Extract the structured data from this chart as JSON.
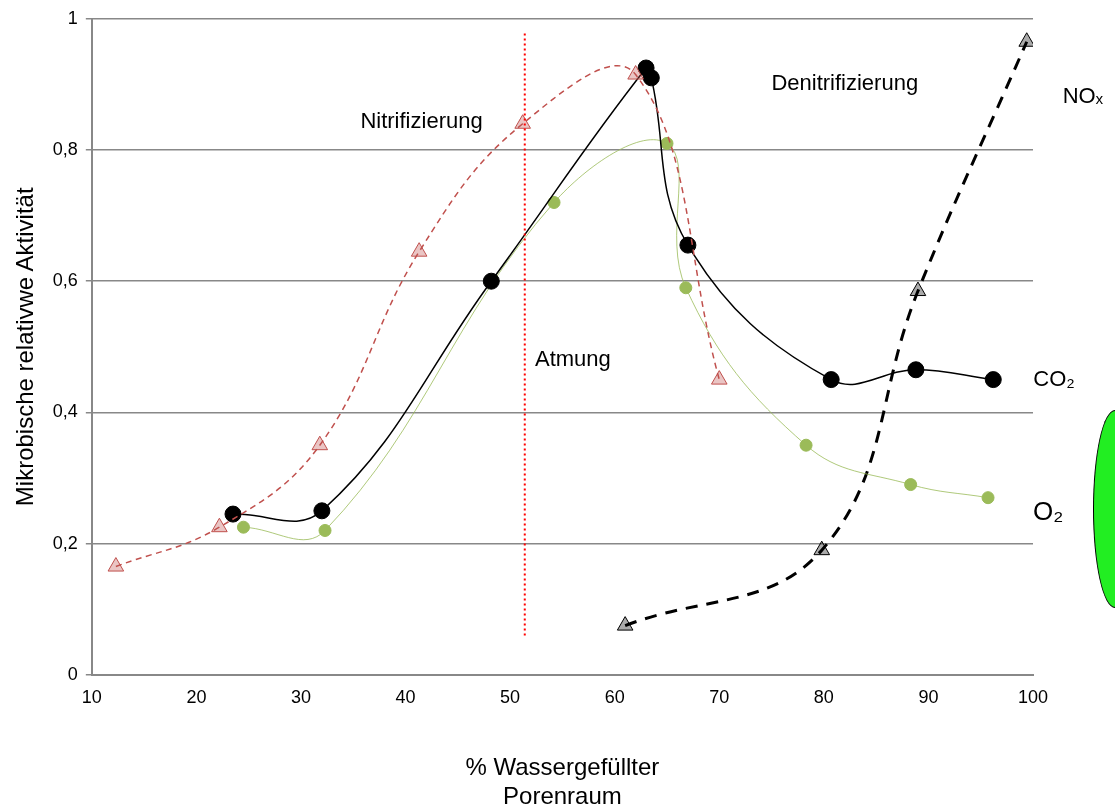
{
  "chart_data": {
    "type": "line",
    "xlabel": "% Wassergefüllter Porenraum",
    "ylabel": "Mikrobische relativwe Aktivität",
    "xlim": [
      10,
      100
    ],
    "xticks": [
      10,
      20,
      30,
      40,
      50,
      60,
      70,
      80,
      90,
      100
    ],
    "ylim": [
      0,
      1
    ],
    "yticks": [
      0,
      {
        "value": 0.2,
        "label": "0,2"
      },
      {
        "value": 0.4,
        "label": "0,4"
      },
      {
        "value": 0.6,
        "label": "0,6"
      },
      {
        "value": 0.8,
        "label": "0,8"
      },
      1
    ],
    "grid": "y",
    "legend": false,
    "series": [
      {
        "name": "Nitrifizierung",
        "color": "#c0504d",
        "marker": "triangle",
        "line_style": "dashed",
        "x": [
          12.3,
          22.2,
          31.8,
          41.3,
          51.2,
          62,
          70
        ],
        "values": [
          0.165,
          0.225,
          0.35,
          0.645,
          0.84,
          0.915,
          0.45
        ]
      },
      {
        "name": "CO₂",
        "color": "#000000",
        "marker": "circle",
        "line_style": "solid",
        "x": [
          23.5,
          32,
          48.2,
          63,
          63.5,
          67,
          80.7,
          88.8,
          96.2
        ],
        "values": [
          0.245,
          0.25,
          0.6,
          0.925,
          0.91,
          0.655,
          0.45,
          0.465,
          0.45
        ]
      },
      {
        "name": "O₂",
        "color": "#9bbb59",
        "marker": "circle",
        "line_style": "solid",
        "x": [
          24.5,
          32.3,
          54.2,
          65,
          66.8,
          78.3,
          88.3,
          95.7
        ],
        "values": [
          0.225,
          0.22,
          0.72,
          0.81,
          0.59,
          0.35,
          0.29,
          0.27
        ]
      },
      {
        "name": "NOₓ",
        "color": "#000000",
        "marker": "triangle",
        "line_style": "dashed",
        "x": [
          61,
          79.8,
          89,
          99.4
        ],
        "values": [
          0.075,
          0.19,
          0.585,
          0.965
        ]
      }
    ],
    "ref_lines": [
      {
        "axis": "x",
        "value": 51.4,
        "color": "#ff0000",
        "line_style": "dotted"
      }
    ],
    "annotations": [
      "Atmung",
      "Denitrifizierung"
    ]
  }
}
